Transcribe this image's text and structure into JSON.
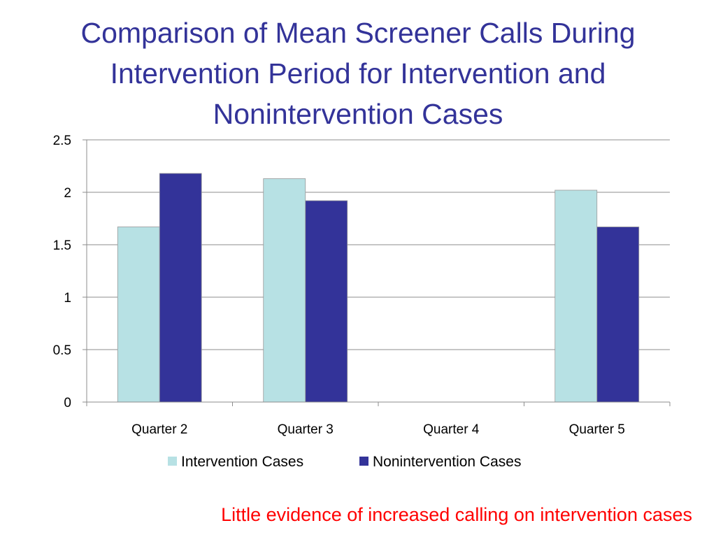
{
  "slide": {
    "title": "Comparison of Mean Screener Calls During Intervention Period for Intervention and Nonintervention Cases",
    "caption": "Little evidence of increased calling on intervention cases"
  },
  "chart_data": {
    "type": "bar",
    "title": "",
    "xlabel": "",
    "ylabel": "",
    "categories": [
      "Quarter 2",
      "Quarter 3",
      "Quarter 4",
      "Quarter 5"
    ],
    "series": [
      {
        "name": "Intervention Cases",
        "values": [
          1.67,
          2.13,
          0,
          2.02
        ],
        "color": "#b7e1e4"
      },
      {
        "name": "Nonintervention Cases",
        "values": [
          2.18,
          1.92,
          0,
          1.67
        ],
        "color": "#333399"
      }
    ],
    "ylim": [
      0,
      2.5
    ],
    "yticks": [
      "0",
      "0.5",
      "1",
      "1.5",
      "2",
      "2.5"
    ],
    "grid": true,
    "legend_position": "bottom"
  }
}
